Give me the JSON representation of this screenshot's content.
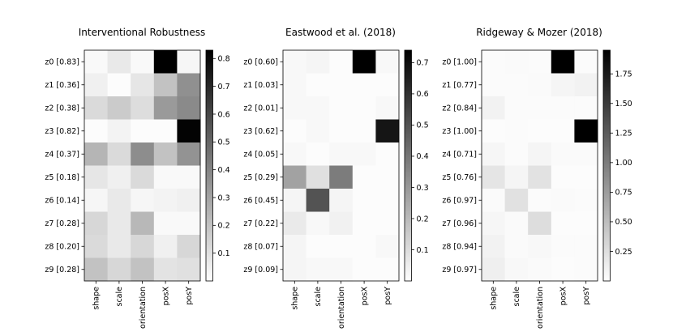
{
  "chart_data": [
    {
      "type": "heatmap",
      "title": "Interventional Robustness",
      "row_labels": [
        "z0 [0.83]",
        "z1 [0.36]",
        "z2 [0.38]",
        "z3 [0.82]",
        "z4 [0.37]",
        "z5 [0.18]",
        "z6 [0.14]",
        "z7 [0.28]",
        "z8 [0.20]",
        "z9 [0.28]"
      ],
      "col_labels": [
        "shape",
        "scale",
        "orientation",
        "posX",
        "posY"
      ],
      "values": [
        [
          0.02,
          0.07,
          0.02,
          0.83,
          0.03
        ],
        [
          0.05,
          0.01,
          0.08,
          0.2,
          0.36
        ],
        [
          0.12,
          0.17,
          0.11,
          0.33,
          0.38
        ],
        [
          0.01,
          0.04,
          0.01,
          0.01,
          0.82
        ],
        [
          0.24,
          0.12,
          0.37,
          0.2,
          0.35
        ],
        [
          0.08,
          0.05,
          0.12,
          0.02,
          0.02
        ],
        [
          0.03,
          0.07,
          0.03,
          0.04,
          0.05
        ],
        [
          0.13,
          0.07,
          0.23,
          0.02,
          0.02
        ],
        [
          0.12,
          0.07,
          0.13,
          0.05,
          0.13
        ],
        [
          0.2,
          0.13,
          0.2,
          0.09,
          0.1
        ]
      ],
      "colorbar": {
        "ticks": [
          0.1,
          0.2,
          0.3,
          0.4,
          0.5,
          0.6,
          0.7,
          0.8
        ],
        "vmin": 0.0,
        "vmax": 0.83
      },
      "colormap": "white-to-black"
    },
    {
      "type": "heatmap",
      "title": "Eastwood et al. (2018)",
      "row_labels": [
        "z0 [0.60]",
        "z1 [0.03]",
        "z2 [0.01]",
        "z3 [0.62]",
        "z4 [0.05]",
        "z5 [0.29]",
        "z6 [0.45]",
        "z7 [0.22]",
        "z8 [0.07]",
        "z9 [0.09]"
      ],
      "col_labels": [
        "shape",
        "scale",
        "orientation",
        "posX",
        "posY"
      ],
      "values": [
        [
          0.02,
          0.03,
          0.01,
          0.74,
          0.02
        ],
        [
          0.02,
          0.01,
          0.01,
          0.01,
          0.01
        ],
        [
          0.02,
          0.02,
          0.01,
          0.01,
          0.02
        ],
        [
          0.01,
          0.02,
          0.01,
          0.01,
          0.68
        ],
        [
          0.02,
          0.01,
          0.02,
          0.02,
          0.01
        ],
        [
          0.27,
          0.09,
          0.38,
          0.01,
          0.01
        ],
        [
          0.03,
          0.5,
          0.03,
          0.01,
          0.01
        ],
        [
          0.06,
          0.02,
          0.04,
          0.01,
          0.01
        ],
        [
          0.03,
          0.01,
          0.01,
          0.01,
          0.02
        ],
        [
          0.03,
          0.02,
          0.02,
          0.01,
          0.01
        ]
      ],
      "colorbar": {
        "ticks": [
          0.1,
          0.2,
          0.3,
          0.4,
          0.5,
          0.6,
          0.7
        ],
        "vmin": 0.0,
        "vmax": 0.74
      },
      "colormap": "white-to-black"
    },
    {
      "type": "heatmap",
      "title": "Ridgeway & Mozer (2018)",
      "row_labels": [
        "z0 [1.00]",
        "z1 [0.77]",
        "z2 [0.84]",
        "z3 [1.00]",
        "z4 [0.71]",
        "z5 [0.76]",
        "z6 [0.97]",
        "z7 [0.96]",
        "z8 [0.94]",
        "z9 [0.97]"
      ],
      "col_labels": [
        "shape",
        "scale",
        "orientation",
        "posX",
        "posY"
      ],
      "values": [
        [
          0.03,
          0.04,
          0.03,
          1.95,
          0.03
        ],
        [
          0.03,
          0.03,
          0.04,
          0.08,
          0.1
        ],
        [
          0.1,
          0.03,
          0.03,
          0.03,
          0.03
        ],
        [
          0.02,
          0.03,
          0.02,
          0.02,
          1.95
        ],
        [
          0.07,
          0.03,
          0.08,
          0.04,
          0.04
        ],
        [
          0.2,
          0.08,
          0.22,
          0.02,
          0.02
        ],
        [
          0.04,
          0.23,
          0.03,
          0.04,
          0.03
        ],
        [
          0.07,
          0.04,
          0.26,
          0.02,
          0.02
        ],
        [
          0.1,
          0.04,
          0.05,
          0.03,
          0.03
        ],
        [
          0.12,
          0.05,
          0.04,
          0.02,
          0.03
        ]
      ],
      "colorbar": {
        "ticks": [
          0.25,
          0.5,
          0.75,
          1.0,
          1.25,
          1.5,
          1.75
        ],
        "tick_labels": [
          "0.25",
          "0.50",
          "0.75",
          "1.00",
          "1.25",
          "1.50",
          "1.75"
        ],
        "vmin": 0.0,
        "vmax": 1.95
      },
      "colormap": "white-to-black"
    }
  ]
}
